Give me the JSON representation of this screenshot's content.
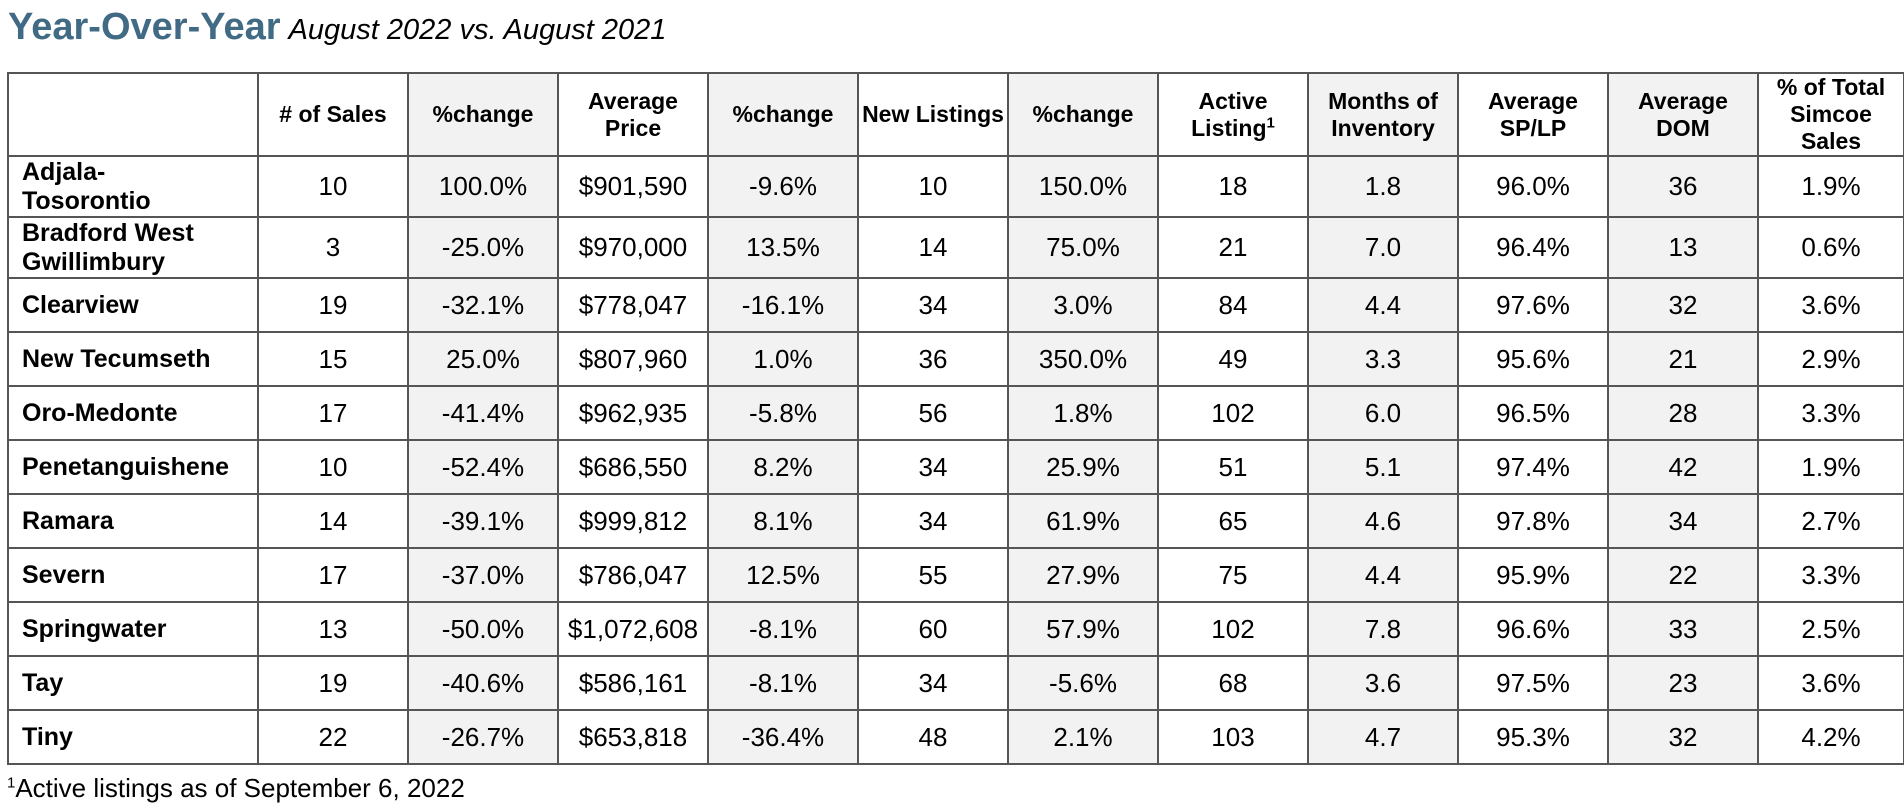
{
  "heading": {
    "title": "Year-Over-Year",
    "subtitle": "August 2022 vs. August 2021"
  },
  "table": {
    "columns": [
      {
        "label": "# of Sales"
      },
      {
        "label": "%change"
      },
      {
        "label": "Average Price"
      },
      {
        "label": "%change"
      },
      {
        "label": "New Listings"
      },
      {
        "label": "%change"
      },
      {
        "label": "Active Listing",
        "sup": "1"
      },
      {
        "label": "Months of Inventory"
      },
      {
        "label": "Average SP/LP"
      },
      {
        "label": "Average DOM"
      },
      {
        "label": "% of Total Simcoe Sales"
      }
    ],
    "rows": [
      {
        "name": "Adjala-\nTosorontio",
        "cells": [
          "10",
          "100.0%",
          "$901,590",
          "-9.6%",
          "10",
          "150.0%",
          "18",
          "1.8",
          "96.0%",
          "36",
          "1.9%"
        ]
      },
      {
        "name": "Bradford West Gwillimbury",
        "cells": [
          "3",
          "-25.0%",
          "$970,000",
          "13.5%",
          "14",
          "75.0%",
          "21",
          "7.0",
          "96.4%",
          "13",
          "0.6%"
        ]
      },
      {
        "name": "Clearview",
        "cells": [
          "19",
          "-32.1%",
          "$778,047",
          "-16.1%",
          "34",
          "3.0%",
          "84",
          "4.4",
          "97.6%",
          "32",
          "3.6%"
        ]
      },
      {
        "name": "New Tecumseth",
        "cells": [
          "15",
          "25.0%",
          "$807,960",
          "1.0%",
          "36",
          "350.0%",
          "49",
          "3.3",
          "95.6%",
          "21",
          "2.9%"
        ]
      },
      {
        "name": "Oro-Medonte",
        "cells": [
          "17",
          "-41.4%",
          "$962,935",
          "-5.8%",
          "56",
          "1.8%",
          "102",
          "6.0",
          "96.5%",
          "28",
          "3.3%"
        ]
      },
      {
        "name": "Penetanguishene",
        "cells": [
          "10",
          "-52.4%",
          "$686,550",
          "8.2%",
          "34",
          "25.9%",
          "51",
          "5.1",
          "97.4%",
          "42",
          "1.9%"
        ]
      },
      {
        "name": "Ramara",
        "cells": [
          "14",
          "-39.1%",
          "$999,812",
          "8.1%",
          "34",
          "61.9%",
          "65",
          "4.6",
          "97.8%",
          "34",
          "2.7%"
        ]
      },
      {
        "name": "Severn",
        "cells": [
          "17",
          "-37.0%",
          "$786,047",
          "12.5%",
          "55",
          "27.9%",
          "75",
          "4.4",
          "95.9%",
          "22",
          "3.3%"
        ]
      },
      {
        "name": "Springwater",
        "cells": [
          "13",
          "-50.0%",
          "$1,072,608",
          "-8.1%",
          "60",
          "57.9%",
          "102",
          "7.8",
          "96.6%",
          "33",
          "2.5%"
        ]
      },
      {
        "name": "Tay",
        "cells": [
          "19",
          "-40.6%",
          "$586,161",
          "-8.1%",
          "34",
          "-5.6%",
          "68",
          "3.6",
          "97.5%",
          "23",
          "3.6%"
        ]
      },
      {
        "name": "Tiny",
        "cells": [
          "22",
          "-26.7%",
          "$653,818",
          "-36.4%",
          "48",
          "2.1%",
          "103",
          "4.7",
          "95.3%",
          "32",
          "4.2%"
        ]
      }
    ]
  },
  "footnote": {
    "marker": "1",
    "text": "Active listings as of September 6, 2022"
  },
  "colors": {
    "title": "#416a85",
    "shaded_column": "#f2f2f2",
    "border": "#555555"
  }
}
